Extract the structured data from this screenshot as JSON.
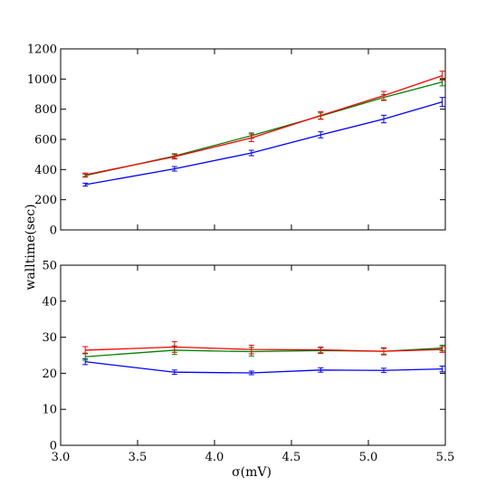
{
  "chart_data": [
    {
      "type": "line",
      "title": "",
      "xlabel": "",
      "ylabel": "",
      "xlim": [
        3.0,
        5.5
      ],
      "ylim": [
        0,
        1200
      ],
      "grid": false,
      "x_ticks": [
        "3.0",
        "3.5",
        "4.0",
        "4.5",
        "5.0",
        "5.5"
      ],
      "x_ticks_shown": false,
      "y_ticks": [
        "0",
        "200",
        "400",
        "600",
        "800",
        "1000",
        "1200"
      ],
      "x": [
        3.16,
        3.74,
        4.24,
        4.69,
        5.1,
        5.48
      ],
      "series": [
        {
          "color": "#0000ff",
          "values": [
            300,
            405,
            510,
            630,
            735,
            848
          ],
          "errors": [
            10,
            15,
            18,
            20,
            25,
            30
          ]
        },
        {
          "color": "#008000",
          "values": [
            360,
            490,
            625,
            755,
            878,
            980
          ],
          "errors": [
            10,
            15,
            18,
            20,
            20,
            25
          ]
        },
        {
          "color": "#ff0000",
          "values": [
            365,
            485,
            610,
            758,
            890,
            1022
          ],
          "errors": [
            12,
            15,
            25,
            25,
            28,
            30
          ]
        }
      ]
    },
    {
      "type": "line",
      "title": "",
      "xlabel": "σ(mV)",
      "ylabel": "walltime(sec)",
      "xlim": [
        3.0,
        5.5
      ],
      "ylim": [
        0,
        50
      ],
      "grid": false,
      "x_ticks": [
        "3.0",
        "3.5",
        "4.0",
        "4.5",
        "5.0",
        "5.5"
      ],
      "x_ticks_shown": true,
      "y_ticks": [
        "0",
        "10",
        "20",
        "30",
        "40",
        "50"
      ],
      "x": [
        3.16,
        3.74,
        4.24,
        4.69,
        5.1,
        5.48
      ],
      "series": [
        {
          "color": "#0000ff",
          "values": [
            23.2,
            20.3,
            20.1,
            20.9,
            20.8,
            21.2
          ],
          "errors": [
            0.8,
            0.6,
            0.5,
            0.6,
            0.6,
            0.8
          ]
        },
        {
          "color": "#008000",
          "values": [
            24.6,
            26.4,
            26.0,
            26.3,
            26.1,
            27.0
          ],
          "errors": [
            1.0,
            1.2,
            1.2,
            0.8,
            0.8,
            0.8
          ]
        },
        {
          "color": "#ff0000",
          "values": [
            26.4,
            27.3,
            26.6,
            26.5,
            26.1,
            26.6
          ],
          "errors": [
            1.0,
            1.5,
            1.2,
            0.8,
            1.0,
            0.8
          ]
        }
      ]
    }
  ]
}
